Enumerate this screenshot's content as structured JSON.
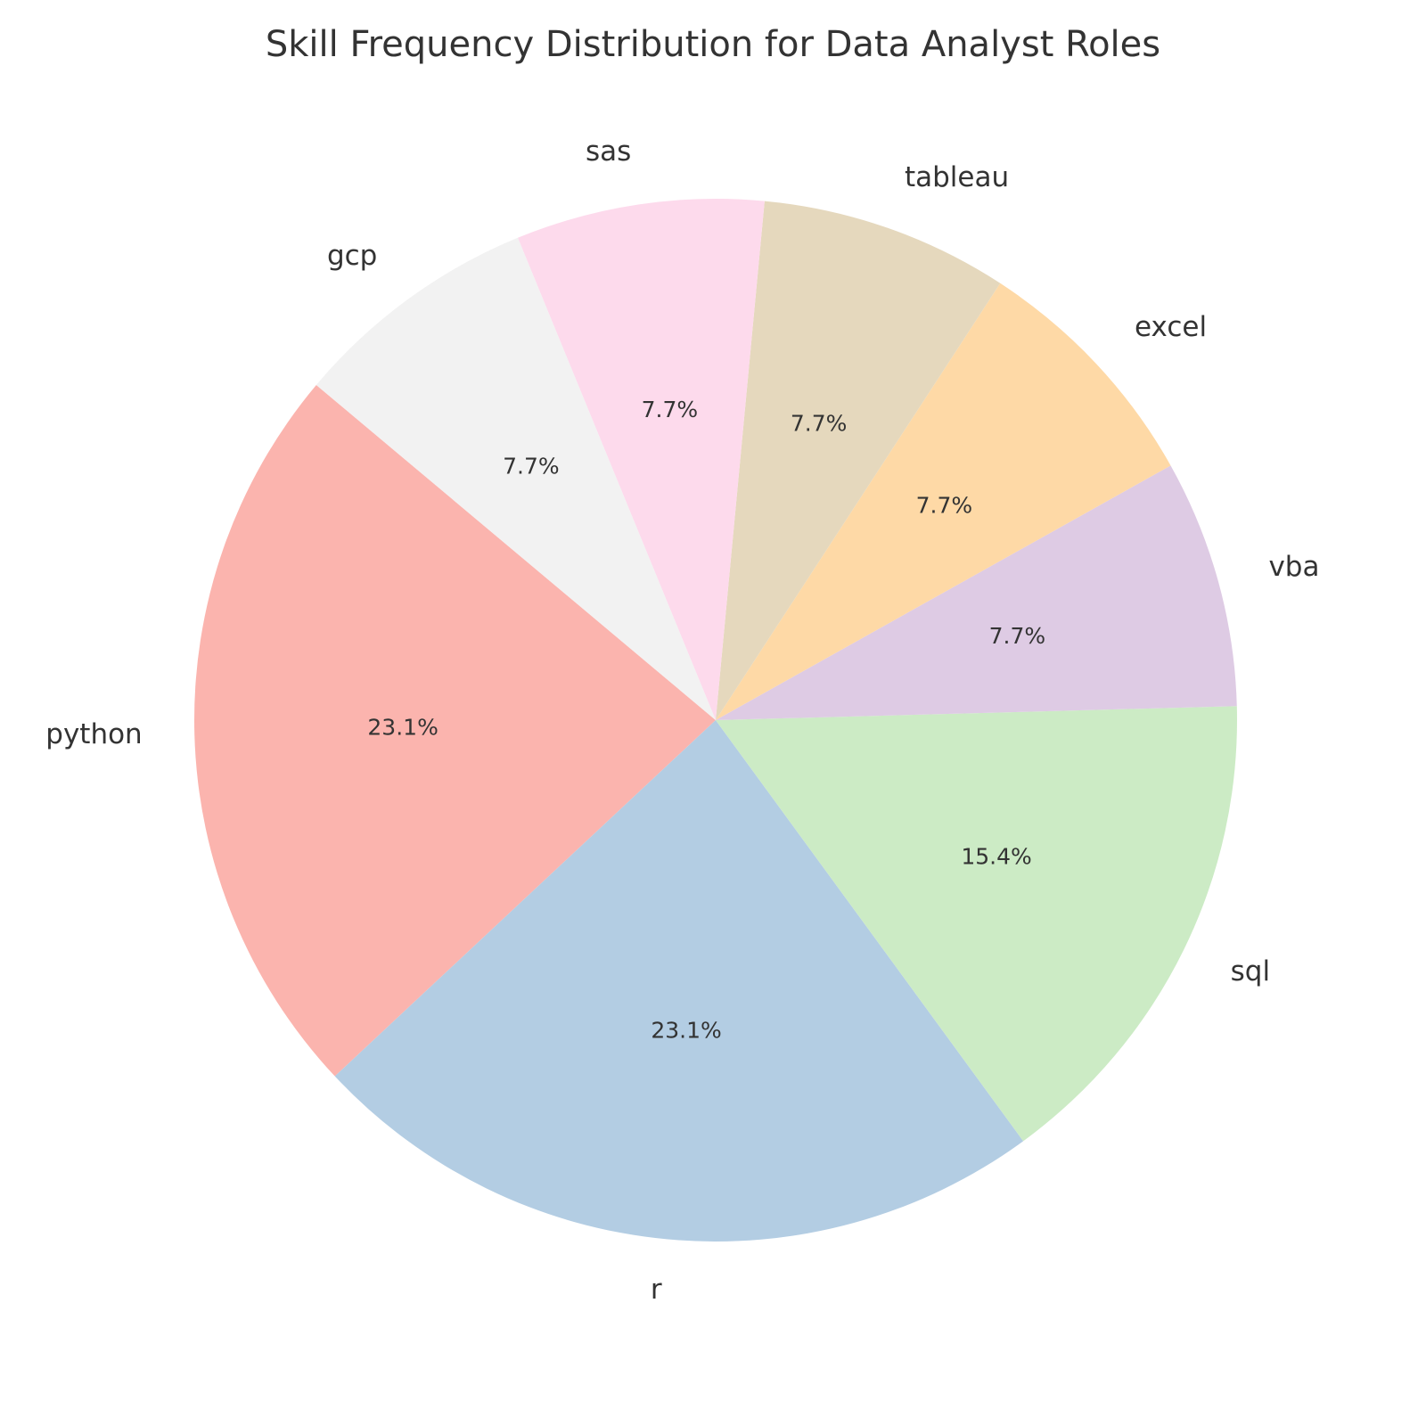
{
  "chart_data": {
    "type": "pie",
    "title": "Skill Frequency Distribution for Data Analyst Roles",
    "start_angle_deg": 140,
    "direction": "counterclockwise",
    "slices": [
      {
        "label": "python",
        "value": 3,
        "pct_label": "23.1%",
        "color": "#fbb4ae"
      },
      {
        "label": "r",
        "value": 3,
        "pct_label": "23.1%",
        "color": "#b3cde3"
      },
      {
        "label": "sql",
        "value": 2,
        "pct_label": "15.4%",
        "color": "#ccebc5"
      },
      {
        "label": "vba",
        "value": 1,
        "pct_label": "7.7%",
        "color": "#decbe4"
      },
      {
        "label": "excel",
        "value": 1,
        "pct_label": "7.7%",
        "color": "#fed9a6"
      },
      {
        "label": "tableau",
        "value": 1,
        "pct_label": "7.7%",
        "color": "#e5d8bd"
      },
      {
        "label": "sas",
        "value": 1,
        "pct_label": "7.7%",
        "color": "#fddaec"
      },
      {
        "label": "gcp",
        "value": 1,
        "pct_label": "7.7%",
        "color": "#f2f2f2"
      }
    ]
  }
}
